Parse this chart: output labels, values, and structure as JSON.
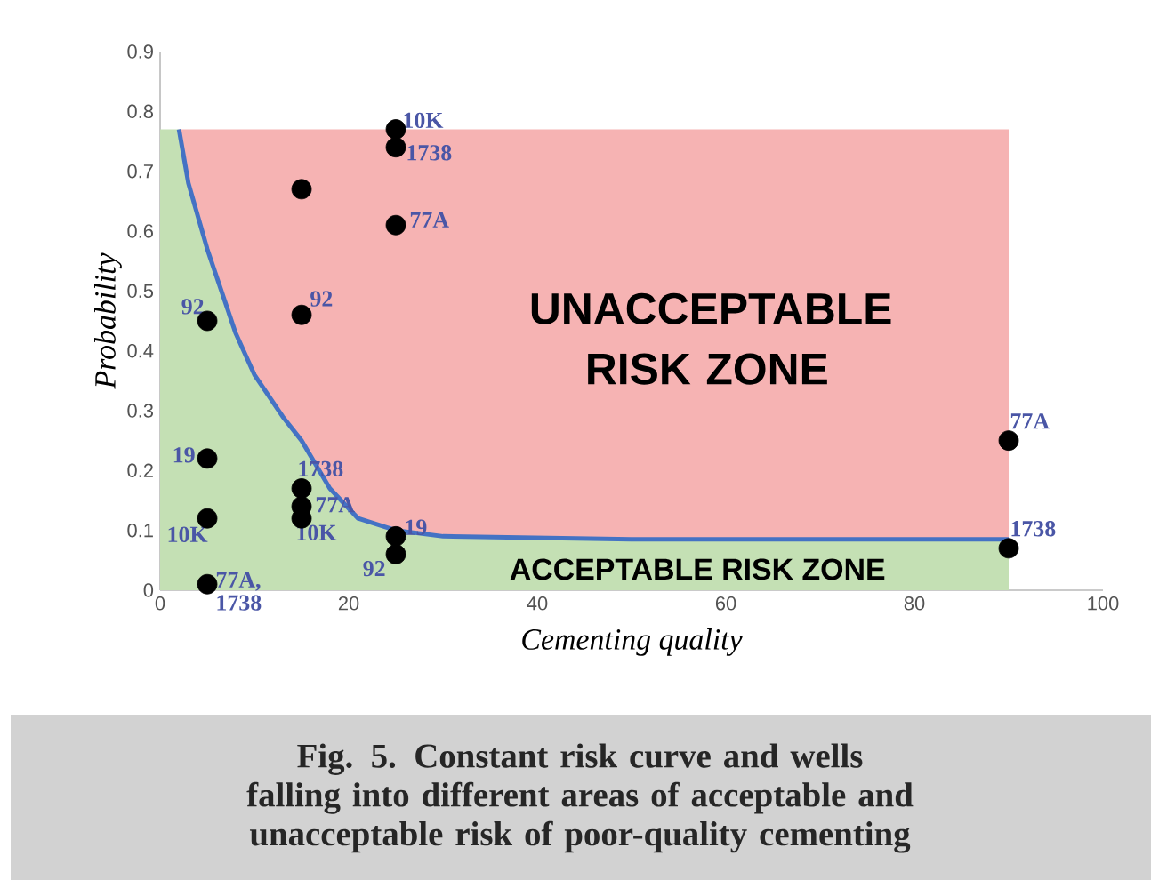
{
  "chart_data": {
    "type": "scatter",
    "xlabel": "Cementing quality",
    "ylabel": "Probability",
    "xlim": [
      0,
      100
    ],
    "ylim": [
      0,
      0.9
    ],
    "xticks": [
      0,
      20,
      40,
      60,
      80,
      100
    ],
    "yticks": [
      0,
      0.1,
      0.2,
      0.3,
      0.4,
      0.5,
      0.6,
      0.7,
      0.8,
      0.9
    ],
    "grid": false,
    "stacked": true,
    "series": [
      {
        "type": "area",
        "color": "#c4e0b4",
        "x": [
          0,
          2,
          3,
          5,
          8,
          10,
          13,
          15,
          18,
          21,
          25,
          30,
          50,
          90
        ],
        "values": [
          0.77,
          0.77,
          0.68,
          0.57,
          0.43,
          0.36,
          0.29,
          0.25,
          0.17,
          0.12,
          0.1,
          0.09,
          0.085,
          0.085
        ]
      },
      {
        "type": "area",
        "color": "#f6b3b3",
        "x": [
          0,
          2,
          3,
          5,
          8,
          10,
          13,
          15,
          18,
          21,
          25,
          30,
          50,
          90
        ],
        "values": [
          0,
          0,
          0.09,
          0.2,
          0.34,
          0.41,
          0.48,
          0.52,
          0.6,
          0.65,
          0.67,
          0.68,
          0.685,
          0.685
        ]
      },
      {
        "type": "line",
        "color": "#4472c4",
        "marker": "none",
        "x": [
          2,
          3,
          5,
          8,
          10,
          13,
          15,
          18,
          21,
          25,
          30,
          50,
          90
        ],
        "values": [
          0.77,
          0.68,
          0.57,
          0.43,
          0.36,
          0.29,
          0.25,
          0.17,
          0.12,
          0.1,
          0.09,
          0.085,
          0.085
        ]
      },
      {
        "color": "#000000",
        "marker": "circle",
        "x": [
          5,
          5,
          5,
          5,
          15,
          15,
          15,
          15,
          15,
          25,
          25,
          25,
          25,
          25,
          90,
          90
        ],
        "values": [
          0.45,
          0.22,
          0.12,
          0.01,
          0.67,
          0.46,
          0.17,
          0.14,
          0.12,
          0.77,
          0.74,
          0.61,
          0.09,
          0.06,
          0.25,
          0.07
        ]
      }
    ],
    "annotations": [
      {
        "text": "10K",
        "x": 25,
        "y": 0.77
      },
      {
        "text": "1738",
        "x": 25,
        "y": 0.74
      },
      {
        "text": "77A",
        "x": 25,
        "y": 0.61
      },
      {
        "text": "92",
        "x": 5,
        "y": 0.45
      },
      {
        "text": "92",
        "x": 15,
        "y": 0.46
      },
      {
        "text": "19",
        "x": 5,
        "y": 0.22
      },
      {
        "text": "10K",
        "x": 5,
        "y": 0.12
      },
      {
        "text": "77A, 1738",
        "x": 5,
        "y": 0.01
      },
      {
        "text": "1738",
        "x": 15,
        "y": 0.17
      },
      {
        "text": "77A",
        "x": 15,
        "y": 0.14
      },
      {
        "text": "10K",
        "x": 15,
        "y": 0.12
      },
      {
        "text": "19",
        "x": 25,
        "y": 0.09
      },
      {
        "text": "92",
        "x": 25,
        "y": 0.06
      },
      {
        "text": "77A",
        "x": 90,
        "y": 0.25
      },
      {
        "text": "1738",
        "x": 90,
        "y": 0.07
      },
      "UNACCEPTABLE RISK ZONE",
      "ACCEPTABLE RISK ZONE",
      "Fig. 5. Constant risk curve and wells falling into different areas of acceptable and unacceptable risk of poor-quality cementing"
    ]
  }
}
